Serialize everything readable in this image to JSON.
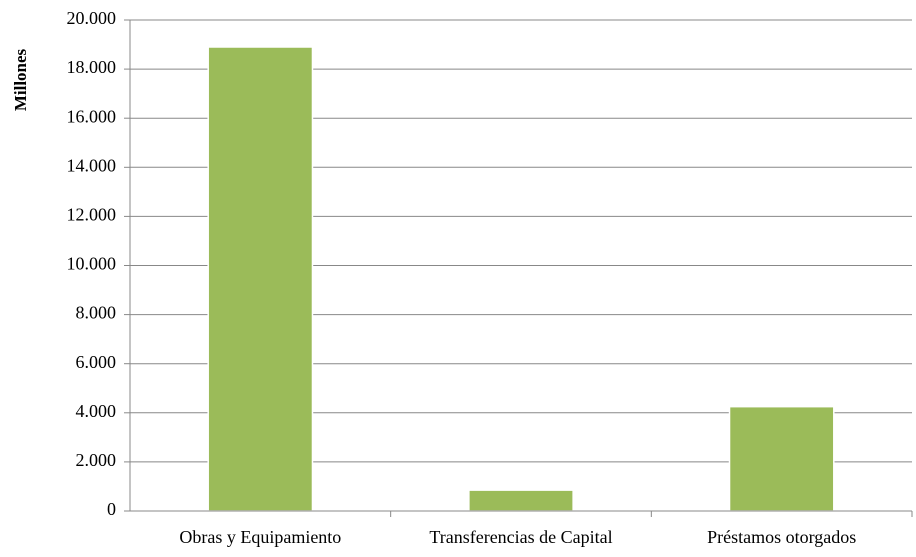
{
  "chart_data": {
    "type": "bar",
    "y_label": "Millones",
    "categories": [
      "Obras y Equipamiento",
      "Transferencias de Capital",
      "Préstamos otorgados"
    ],
    "values": [
      18900,
      850,
      4250
    ],
    "color": "#9bbb59",
    "ylim": [
      0,
      20000
    ],
    "yticks": [
      0,
      {
        "value": 2000,
        "label": "2.000"
      },
      {
        "value": 4000,
        "label": "4.000"
      },
      {
        "value": 6000,
        "label": "6.000"
      },
      {
        "value": 8000,
        "label": "8.000"
      },
      {
        "value": 10000,
        "label": "10.000"
      },
      {
        "value": 12000,
        "label": "12.000"
      },
      {
        "value": 14000,
        "label": "14.000"
      },
      {
        "value": 16000,
        "label": "16.000"
      },
      {
        "value": 18000,
        "label": "18.000"
      },
      {
        "value": 20000,
        "label": "20.000"
      }
    ],
    "grid": true
  }
}
